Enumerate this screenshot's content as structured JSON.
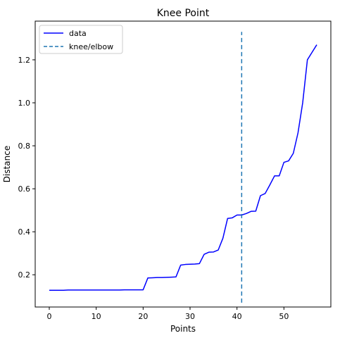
{
  "chart_data": {
    "type": "line",
    "title": "Knee Point",
    "xlabel": "Points",
    "ylabel": "Distance",
    "xlim": [
      -3,
      60
    ],
    "ylim": [
      0.05,
      1.38
    ],
    "xticks": [
      0,
      10,
      20,
      30,
      40,
      50
    ],
    "yticks": [
      0.2,
      0.4,
      0.6,
      0.8,
      1.0,
      1.2
    ],
    "ytick_labels": [
      "0.2",
      "0.4",
      "0.6",
      "0.8",
      "1.0",
      "1.2"
    ],
    "grid": false,
    "legend_position": "top-left",
    "series": [
      {
        "name": "data",
        "color": "#0000ff",
        "style": "solid",
        "x": [
          0,
          1,
          2,
          3,
          4,
          5,
          6,
          7,
          8,
          9,
          10,
          11,
          12,
          13,
          14,
          15,
          16,
          17,
          18,
          19,
          20,
          21,
          22,
          23,
          24,
          25,
          26,
          27,
          28,
          29,
          30,
          31,
          32,
          33,
          34,
          35,
          36,
          37,
          38,
          39,
          40,
          41,
          42,
          43,
          44,
          45,
          46,
          47,
          48,
          49,
          50,
          51,
          52,
          53,
          54,
          55,
          56,
          57
        ],
        "values": [
          0.128,
          0.128,
          0.128,
          0.128,
          0.129,
          0.129,
          0.129,
          0.129,
          0.129,
          0.129,
          0.129,
          0.129,
          0.129,
          0.129,
          0.129,
          0.129,
          0.13,
          0.13,
          0.13,
          0.13,
          0.13,
          0.185,
          0.186,
          0.187,
          0.187,
          0.188,
          0.189,
          0.19,
          0.245,
          0.248,
          0.249,
          0.25,
          0.252,
          0.295,
          0.305,
          0.306,
          0.315,
          0.37,
          0.462,
          0.465,
          0.478,
          0.478,
          0.485,
          0.495,
          0.496,
          0.568,
          0.578,
          0.618,
          0.66,
          0.66,
          0.723,
          0.73,
          0.765,
          0.86,
          1.0,
          1.2,
          1.235,
          1.27
        ]
      },
      {
        "name": "knee/elbow",
        "color": "#1f77b4",
        "style": "dashed",
        "x": [
          41,
          41
        ],
        "values": [
          0.07,
          1.33
        ]
      }
    ]
  }
}
